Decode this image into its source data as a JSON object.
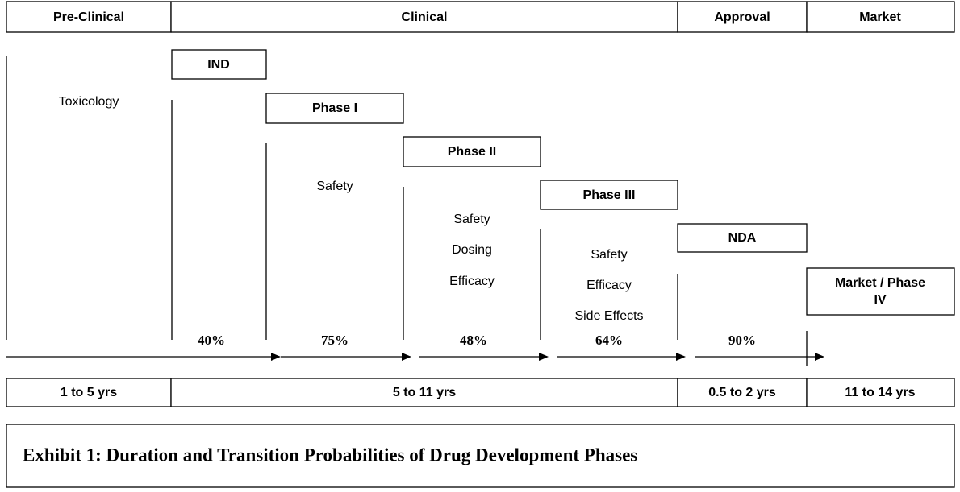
{
  "header": {
    "columns": [
      "Pre-Clinical",
      "Clinical",
      "Approval",
      "Market"
    ]
  },
  "pre_clinical": {
    "description": "Toxicology"
  },
  "stages": [
    {
      "label": "IND",
      "probability": "40%"
    },
    {
      "label": "Phase I",
      "descriptions": [
        "Safety"
      ],
      "probability": "75%"
    },
    {
      "label": "Phase II",
      "descriptions": [
        "Safety",
        "Dosing",
        "Efficacy"
      ],
      "probability": "48%"
    },
    {
      "label": "Phase III",
      "descriptions": [
        "Safety",
        "Efficacy",
        "Side Effects"
      ],
      "probability": "64%"
    },
    {
      "label": "NDA",
      "probability": "90%"
    },
    {
      "label": [
        "Market / Phase",
        "IV"
      ]
    }
  ],
  "durations": [
    "1 to 5 yrs",
    "5 to 11 yrs",
    "0.5 to 2 yrs",
    "11 to 14 yrs"
  ],
  "caption": "Exhibit 1: Duration and Transition Probabilities of Drug Development Phases"
}
